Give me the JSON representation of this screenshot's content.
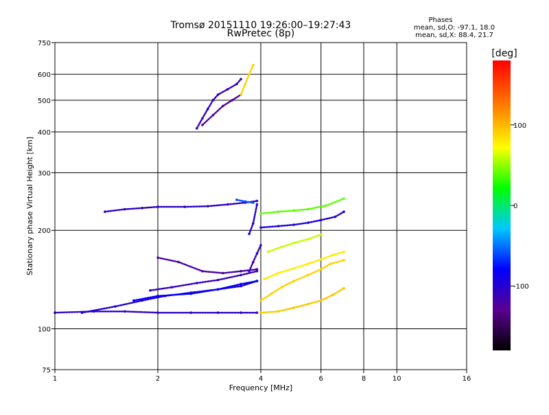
{
  "chart_data": {
    "type": "scatter",
    "title_line1": "Tromsø 20151110 19:26:00–19:27:43",
    "title_line2": "RwPretec (8p)",
    "xlabel": "Frequency [MHz]",
    "ylabel": "Stationary phase Virtual Height [km]",
    "x_scale": "log",
    "y_scale": "log",
    "xlim": [
      1,
      16
    ],
    "ylim": [
      75,
      750
    ],
    "x_ticks": [
      1,
      2,
      4,
      6,
      8,
      10,
      16
    ],
    "x_tick_labels": [
      "1",
      "2",
      "4",
      "6",
      "8",
      "10",
      "16"
    ],
    "y_ticks": [
      75,
      100,
      200,
      300,
      400,
      500,
      600,
      750
    ],
    "y_tick_labels": [
      "75",
      "100",
      "200",
      "300",
      "400",
      "500",
      "600",
      "750"
    ],
    "grid": true,
    "stats": {
      "title": "Phases",
      "line_o": "mean, sd,O: -97.1, 18.0",
      "line_x": "mean, sd,X: 88.4, 21.7"
    },
    "colorbar": {
      "label": "[deg]",
      "min": -180,
      "max": 180,
      "ticks": [
        100,
        0,
        -100
      ],
      "tick_labels": [
        "100",
        "0",
        "-100"
      ]
    },
    "traces": [
      {
        "x": [
          1.0,
          1.3,
          1.6,
          2.0,
          2.5,
          3.0,
          3.5,
          3.9
        ],
        "y": [
          112,
          113,
          113,
          112,
          112,
          112,
          112,
          112
        ],
        "phase": -105
      },
      {
        "x": [
          4.0,
          4.5,
          5.0,
          5.5,
          6.0,
          6.5,
          7.0
        ],
        "y": [
          112,
          113,
          116,
          119,
          122,
          127,
          133
        ],
        "phase": 95
      },
      {
        "x": [
          1.2,
          1.5,
          1.8,
          2.1,
          2.5,
          3.0,
          3.5,
          3.9
        ],
        "y": [
          112,
          117,
          122,
          126,
          129,
          132,
          135,
          140
        ],
        "phase": -100
      },
      {
        "x": [
          1.7,
          2.0,
          2.5,
          3.0,
          3.5,
          3.9
        ],
        "y": [
          122,
          126,
          128,
          132,
          137,
          140
        ],
        "phase": -80
      },
      {
        "x": [
          1.9,
          2.2,
          2.6,
          3.0,
          3.5,
          3.9
        ],
        "y": [
          131,
          134,
          138,
          141,
          146,
          150
        ],
        "phase": -110
      },
      {
        "x": [
          2.0,
          2.3,
          2.7,
          3.1,
          3.5,
          3.9
        ],
        "y": [
          165,
          160,
          150,
          148,
          150,
          152
        ],
        "phase": -120
      },
      {
        "x": [
          1.4,
          1.6,
          1.8,
          2.0,
          2.4,
          2.8,
          3.2,
          3.6,
          3.9
        ],
        "y": [
          228,
          232,
          234,
          236,
          236,
          237,
          240,
          243,
          246
        ],
        "phase": -105
      },
      {
        "x": [
          3.4,
          3.6,
          3.8
        ],
        "y": [
          248,
          245,
          243
        ],
        "phase": -60
      },
      {
        "x": [
          4.0,
          4.3,
          4.6,
          5.0,
          5.5,
          6.0,
          6.4,
          7.0
        ],
        "y": [
          122,
          128,
          134,
          140,
          146,
          152,
          158,
          162
        ],
        "phase": 90
      },
      {
        "x": [
          4.1,
          4.5,
          5.0,
          5.5,
          6.0,
          6.5,
          7.0
        ],
        "y": [
          142,
          148,
          153,
          158,
          163,
          168,
          172
        ],
        "phase": 80
      },
      {
        "x": [
          4.0,
          4.5,
          5.0,
          5.5,
          6.0,
          6.6,
          7.0
        ],
        "y": [
          204,
          206,
          208,
          211,
          215,
          220,
          228
        ],
        "phase": -95
      },
      {
        "x": [
          4.0,
          4.5,
          5.0,
          5.5,
          6.2,
          7.0
        ],
        "y": [
          225,
          228,
          230,
          232,
          238,
          250
        ],
        "phase": 40
      },
      {
        "x": [
          4.2,
          4.6,
          5.0,
          5.5,
          6.0
        ],
        "y": [
          172,
          178,
          183,
          188,
          194
        ],
        "phase": 60
      },
      {
        "x": [
          2.6,
          2.7,
          2.8,
          2.9,
          3.0,
          3.2,
          3.4,
          3.5
        ],
        "y": [
          410,
          440,
          470,
          500,
          520,
          540,
          560,
          580
        ],
        "phase": -110
      },
      {
        "x": [
          2.7,
          2.9,
          3.1,
          3.3,
          3.5
        ],
        "y": [
          420,
          450,
          480,
          500,
          520
        ],
        "phase": -125
      },
      {
        "x": [
          3.5,
          3.6,
          3.7,
          3.8
        ],
        "y": [
          520,
          560,
          600,
          640
        ],
        "phase": 90
      },
      {
        "x": [
          3.7,
          3.8,
          3.9,
          4.0
        ],
        "y": [
          150,
          160,
          170,
          180
        ],
        "phase": -110
      },
      {
        "x": [
          3.7,
          3.8,
          3.9
        ],
        "y": [
          195,
          210,
          240
        ],
        "phase": -100
      }
    ]
  }
}
